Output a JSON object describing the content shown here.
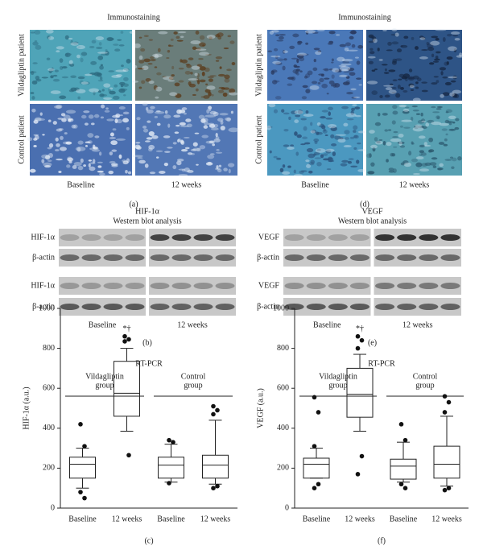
{
  "panel_a": {
    "title": "Immunostaining",
    "row_labels": [
      "Vildagliptin patient",
      "Control patient"
    ],
    "col_labels": [
      "Baseline",
      "12 weeks"
    ],
    "caption": "(a)"
  },
  "panel_d": {
    "title": "Immunostaining",
    "row_labels": [
      "Vildagliptin patient",
      "Control patient"
    ],
    "col_labels": [
      "Baseline",
      "12 weeks"
    ],
    "caption": "(d)"
  },
  "panel_b": {
    "title": "HIF-1α",
    "subtitle": "Western blot analysis",
    "row_labels": [
      "HIF-1α",
      "β-actin",
      "HIF-1α",
      "β-actin"
    ],
    "col_labels": [
      "Baseline",
      "12 weeks"
    ],
    "caption": "(b)"
  },
  "panel_e": {
    "title": "VEGF",
    "subtitle": "Western blot analysis",
    "row_labels": [
      "VEGF",
      "β-actin",
      "VEGF",
      "β-actin"
    ],
    "col_labels": [
      "Baseline",
      "12 weeks"
    ],
    "caption": "(e)"
  },
  "panel_c": {
    "type": "box",
    "title": "RT-PCR",
    "y_label": "HIF-1α (a.u.)",
    "group_labels": [
      [
        "Vildagliptin",
        "group"
      ],
      [
        "Control",
        "group"
      ]
    ],
    "categories": [
      "Baseline",
      "12 weeks",
      "Baseline",
      "12 weeks"
    ],
    "boxes": [
      {
        "whisker_low": 100,
        "q1": 150,
        "median": 220,
        "q3": 255,
        "whisker_high": 300,
        "outliers": [
          420,
          310,
          80,
          50
        ]
      },
      {
        "whisker_low": 385,
        "q1": 460,
        "median": 575,
        "q3": 735,
        "whisker_high": 800,
        "outliers": [
          860,
          845,
          835,
          265
        ]
      },
      {
        "whisker_low": 130,
        "q1": 150,
        "median": 215,
        "q3": 255,
        "whisker_high": 320,
        "outliers": [
          340,
          330,
          125
        ]
      },
      {
        "whisker_low": 120,
        "q1": 150,
        "median": 215,
        "q3": 265,
        "whisker_high": 440,
        "outliers": [
          510,
          490,
          470,
          110,
          100
        ]
      }
    ],
    "annotation": "*†",
    "annotation_box": 1,
    "ylim": [
      0,
      1000
    ],
    "yticks": [
      0,
      200,
      400,
      600,
      800,
      1000
    ],
    "caption": "(c)"
  },
  "panel_f": {
    "type": "box",
    "title": "RT-PCR",
    "y_label": "VEGF (a.u.)",
    "group_labels": [
      [
        "Vildagliptin",
        "group"
      ],
      [
        "Control",
        "group"
      ]
    ],
    "categories": [
      "Baseline",
      "12 weeks",
      "Baseline",
      "12 weeks"
    ],
    "boxes": [
      {
        "whisker_low": 150,
        "q1": 150,
        "median": 220,
        "q3": 250,
        "whisker_high": 300,
        "outliers": [
          555,
          480,
          310,
          120,
          100
        ]
      },
      {
        "whisker_low": 385,
        "q1": 455,
        "median": 570,
        "q3": 700,
        "whisker_high": 770,
        "outliers": [
          860,
          840,
          800,
          260,
          170
        ]
      },
      {
        "whisker_low": 130,
        "q1": 145,
        "median": 210,
        "q3": 245,
        "whisker_high": 330,
        "outliers": [
          420,
          340,
          120,
          100
        ]
      },
      {
        "whisker_low": 110,
        "q1": 150,
        "median": 220,
        "q3": 310,
        "whisker_high": 460,
        "outliers": [
          560,
          530,
          480,
          100,
          90
        ]
      }
    ],
    "annotation": "*†",
    "annotation_box": 1,
    "ylim": [
      0,
      1000
    ],
    "yticks": [
      0,
      200,
      400,
      600,
      800,
      1000
    ],
    "caption": "(f)"
  }
}
